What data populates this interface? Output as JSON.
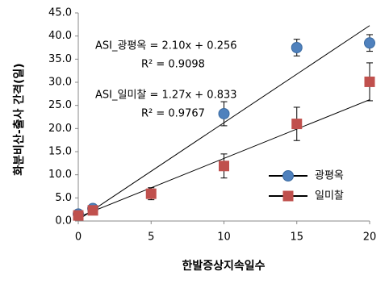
{
  "chart_data": {
    "type": "scatter",
    "xlabel": "한발증상지속일수",
    "ylabel": "화분비산-출사 간격(일)",
    "xlim": [
      0,
      20
    ],
    "xticks": [
      0,
      5,
      10,
      15,
      20
    ],
    "ylim": [
      0,
      45
    ],
    "yticks": [
      {
        "value": 0,
        "label": "0.0"
      },
      {
        "value": 5,
        "label": "5.0"
      },
      {
        "value": 10,
        "label": "10.0"
      },
      {
        "value": 15,
        "label": "15.0"
      },
      {
        "value": 20,
        "label": "20.0"
      },
      {
        "value": 25,
        "label": "25.0"
      },
      {
        "value": 30,
        "label": "30.0"
      },
      {
        "value": 35,
        "label": "35.0"
      },
      {
        "value": 40,
        "label": "40.0"
      },
      {
        "value": 45,
        "label": "45.0"
      }
    ],
    "legend": "lower right",
    "series": [
      {
        "name": "광평옥",
        "color": "#4f81bd",
        "marker": "circle",
        "x": [
          0,
          1,
          10,
          15,
          20
        ],
        "values": [
          1.5,
          2.7,
          23.2,
          37.5,
          38.5
        ],
        "errors": [
          0.4,
          0.5,
          2.6,
          1.8,
          1.8
        ],
        "trend": {
          "slope": 2.1,
          "intercept": 0.256
        },
        "equation": "ASI_광평옥 = 2.10x + 0.256",
        "r2": "R² = 0.9098"
      },
      {
        "name": "일미찰",
        "color": "#c0504d",
        "marker": "square",
        "x": [
          0,
          1,
          5,
          10,
          15,
          20
        ],
        "values": [
          1.2,
          2.3,
          5.9,
          11.9,
          21.0,
          30.1
        ],
        "errors": [
          0.4,
          0.5,
          1.3,
          2.6,
          3.6,
          4.1
        ],
        "trend": {
          "slope": 1.27,
          "intercept": 0.833
        },
        "equation": "ASI_일미찰 = 1.27x + 0.833",
        "r2": "R² = 0.9767"
      }
    ]
  }
}
